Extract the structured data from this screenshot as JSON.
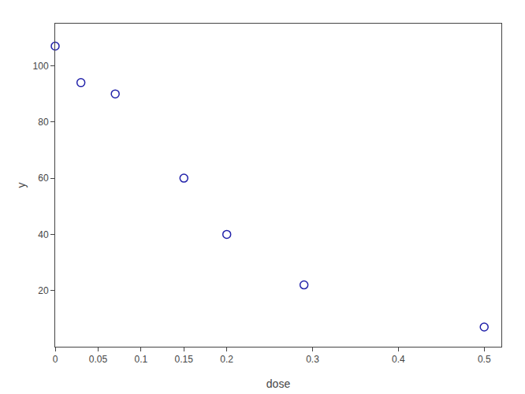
{
  "chart_data": {
    "type": "scatter",
    "xlabel": "dose",
    "ylabel": "y",
    "x": [
      0.0,
      0.03,
      0.07,
      0.15,
      0.2,
      0.29,
      0.5
    ],
    "values": [
      107,
      94,
      90,
      60,
      40,
      22,
      7
    ],
    "color": "#2222aa",
    "marker": "circle-open",
    "xlim": [
      0.0,
      0.52
    ],
    "ylim": [
      0,
      115
    ],
    "xticks": [
      0.0,
      0.05,
      0.1,
      0.15,
      0.2,
      0.3,
      0.4,
      0.5
    ],
    "yticks": [
      20,
      40,
      60,
      80,
      100
    ],
    "grid": false
  }
}
